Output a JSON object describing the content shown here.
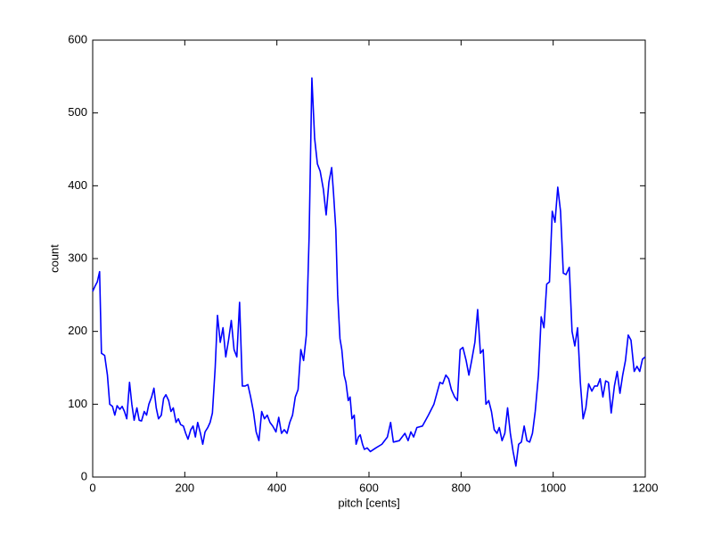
{
  "chart_data": {
    "type": "line",
    "xlabel": "pitch [cents]",
    "ylabel": "count",
    "xlim": [
      0,
      1200
    ],
    "ylim": [
      0,
      600
    ],
    "xticks": [
      0,
      200,
      400,
      600,
      800,
      1000,
      1200
    ],
    "yticks": [
      0,
      100,
      200,
      300,
      400,
      500,
      600
    ],
    "grid": false,
    "x": [
      0,
      5,
      10,
      15,
      19,
      26,
      32,
      37,
      43,
      48,
      53,
      59,
      64,
      69,
      74,
      80,
      85,
      90,
      96,
      101,
      106,
      112,
      117,
      122,
      128,
      133,
      138,
      143,
      149,
      154,
      159,
      165,
      170,
      175,
      181,
      186,
      191,
      197,
      202,
      207,
      213,
      218,
      223,
      228,
      234,
      239,
      244,
      250,
      255,
      260,
      266,
      271,
      277,
      283,
      289,
      295,
      301,
      307,
      313,
      319,
      325,
      331,
      337,
      343,
      349,
      355,
      361,
      367,
      373,
      379,
      385,
      391,
      398,
      404,
      410,
      416,
      422,
      428,
      434,
      440,
      446,
      452,
      458,
      464,
      470,
      476,
      482,
      488,
      494,
      501,
      507,
      513,
      519,
      523,
      528,
      532,
      537,
      541,
      546,
      550,
      555,
      559,
      563,
      568,
      572,
      577,
      581,
      586,
      590,
      596,
      603,
      615,
      628,
      640,
      647,
      653,
      666,
      678,
      685,
      691,
      697,
      704,
      716,
      729,
      741,
      754,
      760,
      767,
      773,
      779,
      786,
      792,
      798,
      804,
      811,
      817,
      823,
      830,
      836,
      842,
      848,
      854,
      860,
      866,
      872,
      878,
      883,
      889,
      895,
      901,
      907,
      913,
      919,
      925,
      931,
      937,
      943,
      949,
      955,
      961,
      968,
      974,
      980,
      986,
      992,
      998,
      1004,
      1010,
      1016,
      1022,
      1028,
      1035,
      1041,
      1047,
      1053,
      1059,
      1065,
      1071,
      1077,
      1084,
      1090,
      1096,
      1102,
      1108,
      1114,
      1120,
      1126,
      1133,
      1139,
      1145,
      1151,
      1157,
      1163,
      1169,
      1176,
      1182,
      1188,
      1194,
      1200
    ],
    "series": [
      {
        "color": "#0000ff",
        "values": [
          255,
          262,
          268,
          282,
          170,
          167,
          140,
          100,
          97,
          85,
          98,
          93,
          97,
          90,
          80,
          130,
          100,
          78,
          95,
          78,
          77,
          90,
          85,
          100,
          110,
          122,
          95,
          80,
          85,
          108,
          113,
          105,
          90,
          95,
          75,
          80,
          72,
          70,
          60,
          52,
          65,
          70,
          55,
          75,
          60,
          45,
          62,
          68,
          75,
          88,
          150,
          222,
          185,
          205,
          165,
          188,
          215,
          175,
          165,
          240,
          125,
          125,
          127,
          110,
          90,
          62,
          50,
          90,
          80,
          85,
          75,
          70,
          62,
          82,
          60,
          65,
          60,
          75,
          85,
          110,
          120,
          175,
          160,
          195,
          330,
          548,
          465,
          430,
          420,
          395,
          360,
          405,
          425,
          390,
          340,
          250,
          190,
          175,
          140,
          130,
          105,
          110,
          80,
          85,
          45,
          55,
          58,
          45,
          38,
          40,
          35,
          40,
          45,
          55,
          75,
          48,
          50,
          60,
          50,
          62,
          55,
          68,
          70,
          85,
          100,
          130,
          128,
          140,
          135,
          120,
          110,
          105,
          175,
          178,
          160,
          140,
          160,
          185,
          230,
          170,
          175,
          100,
          105,
          90,
          65,
          60,
          68,
          50,
          60,
          95,
          60,
          35,
          15,
          45,
          48,
          70,
          50,
          48,
          60,
          90,
          140,
          220,
          205,
          265,
          268,
          365,
          350,
          398,
          365,
          280,
          278,
          288,
          200,
          180,
          205,
          130,
          80,
          95,
          128,
          118,
          125,
          125,
          135,
          110,
          132,
          130,
          88,
          125,
          145,
          115,
          140,
          160,
          195,
          188,
          145,
          152,
          145,
          162,
          165
        ]
      }
    ]
  }
}
